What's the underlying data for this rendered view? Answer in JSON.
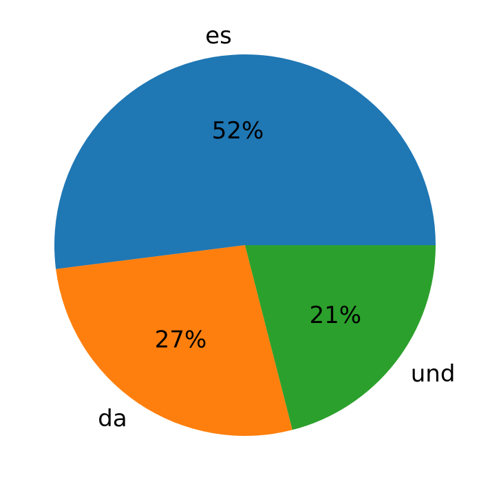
{
  "chart_data": {
    "type": "pie",
    "categories": [
      "es",
      "da",
      "und"
    ],
    "values": [
      52,
      27,
      21
    ],
    "percent_labels": [
      "52%",
      "27%",
      "21%"
    ],
    "colors": [
      "#1f77b4",
      "#ff7f0e",
      "#2ca02c"
    ],
    "start_angle_deg": 0,
    "direction": "counterclockwise",
    "title": "",
    "legend": "none"
  }
}
